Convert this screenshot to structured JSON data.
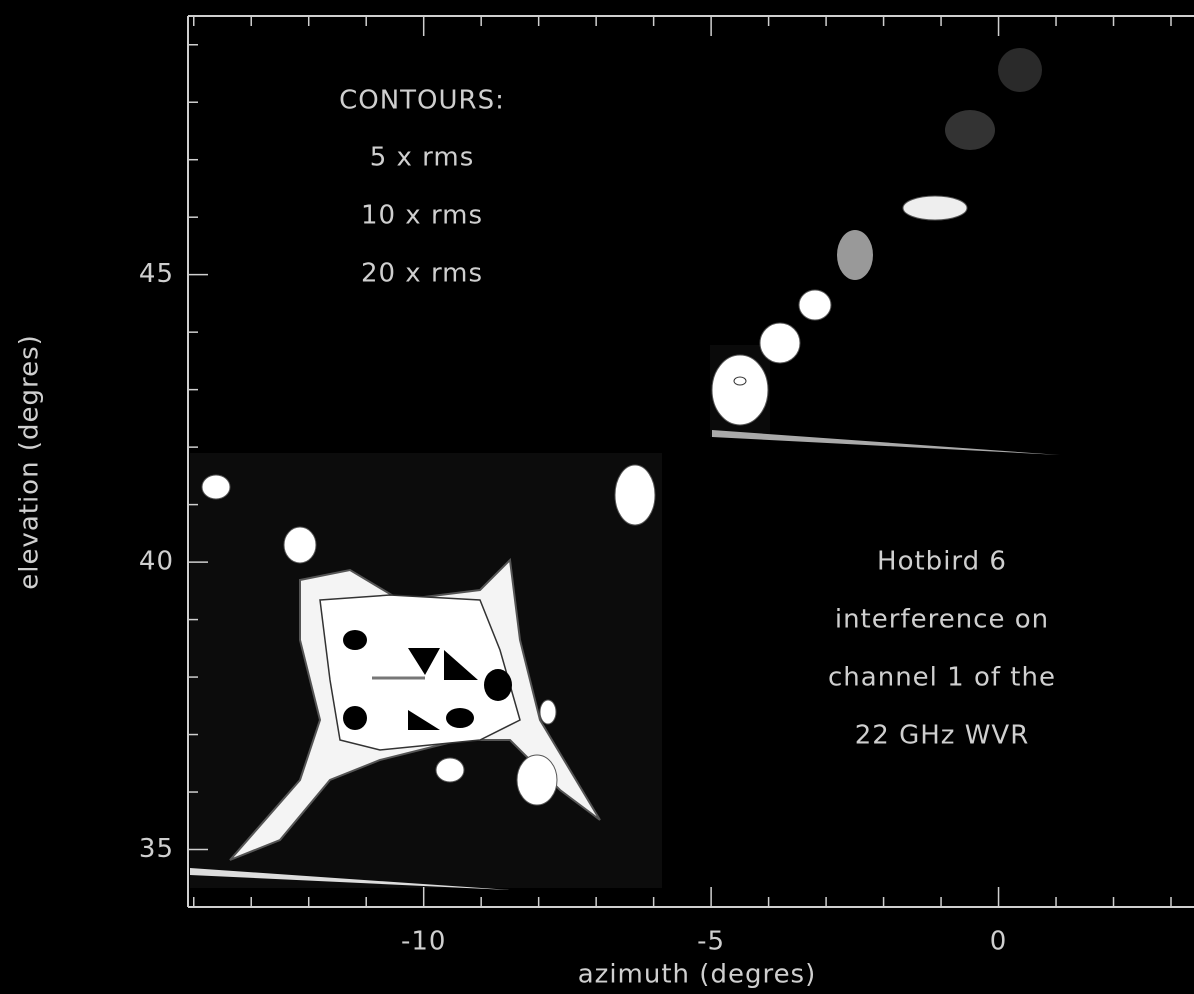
{
  "chart_data": {
    "type": "image",
    "x_label": "azimuth (degres)",
    "y_label": "elevation (degres)",
    "annotations": [
      "CONTOURS:",
      "5 x rms",
      "10 x rms",
      "20 x rms",
      "Hotbird 6",
      "interference on",
      "channel 1 of the",
      "22 GHz WVR"
    ],
    "xlim": [
      -14.1,
      3.4
    ],
    "ylim": [
      34,
      49.5
    ],
    "xticks": [
      -10,
      -5,
      0
    ],
    "yticks": [
      35,
      40,
      45
    ],
    "xminor_ticks": [
      -14,
      -13,
      -12,
      -11,
      -9,
      -8,
      -7,
      -6,
      -4,
      -3,
      -2,
      -1,
      1,
      2,
      3
    ],
    "yminor_ticks": [
      36,
      37,
      38,
      39,
      41,
      42,
      43,
      44,
      46,
      47,
      48,
      49
    ]
  }
}
